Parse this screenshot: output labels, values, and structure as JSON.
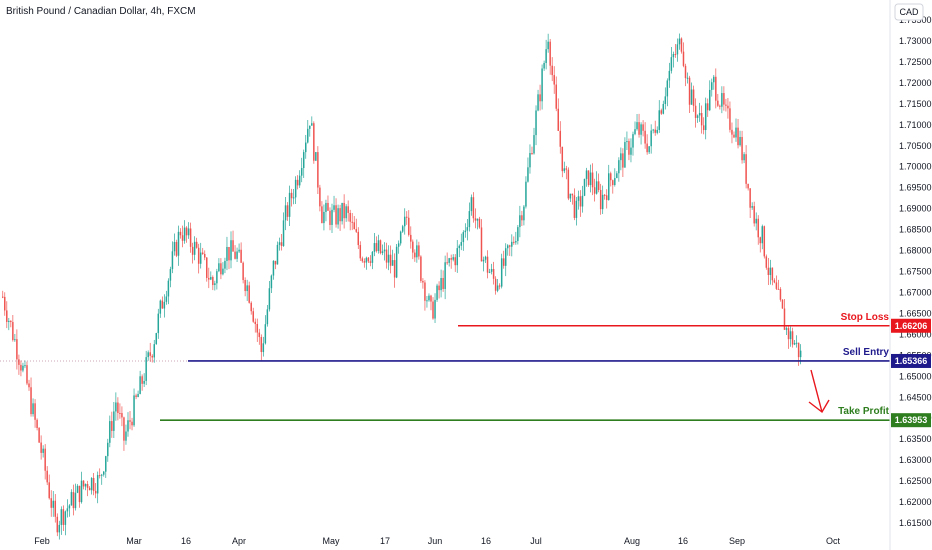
{
  "chart_data": {
    "type": "candlestick",
    "title": "British Pound / Canadian Dollar, 4h, FXCM",
    "currency": "CAD",
    "ylim": [
      1.611,
      1.736
    ],
    "y_ticks": [
      1.615,
      1.62,
      1.625,
      1.63,
      1.635,
      1.64,
      1.645,
      1.65,
      1.655,
      1.66,
      1.665,
      1.67,
      1.675,
      1.68,
      1.685,
      1.69,
      1.695,
      1.7,
      1.705,
      1.71,
      1.715,
      1.72,
      1.725,
      1.73,
      1.735
    ],
    "y_tick_labels": [
      "1.61500",
      "1.62000",
      "1.62500",
      "1.63000",
      "1.63500",
      "1.64000",
      "1.64500",
      "1.65000",
      "1.65500",
      "1.66000",
      "1.66500",
      "1.67000",
      "1.67500",
      "1.68000",
      "1.68500",
      "1.69000",
      "1.69500",
      "1.70000",
      "1.70500",
      "1.71000",
      "1.71500",
      "1.72000",
      "1.72500",
      "1.73000",
      "1.73500"
    ],
    "x_ticks": [
      "Feb",
      "Mar",
      "16",
      "Apr",
      "May",
      "17",
      "Jun",
      "16",
      "Jul",
      "Aug",
      "16",
      "Sep",
      "Oct"
    ],
    "up_color": "#26a69a",
    "down_color": "#ef5350",
    "anchors": [
      [
        0,
        1.669
      ],
      [
        4,
        1.662
      ],
      [
        12,
        1.648
      ],
      [
        20,
        1.63
      ],
      [
        26,
        1.615
      ],
      [
        34,
        1.62
      ],
      [
        42,
        1.625
      ],
      [
        48,
        1.625
      ],
      [
        56,
        1.644
      ],
      [
        60,
        1.635
      ],
      [
        66,
        1.644
      ],
      [
        74,
        1.657
      ],
      [
        80,
        1.67
      ],
      [
        88,
        1.685
      ],
      [
        96,
        1.68
      ],
      [
        104,
        1.672
      ],
      [
        110,
        1.68
      ],
      [
        116,
        1.679
      ],
      [
        122,
        1.67
      ],
      [
        128,
        1.656
      ],
      [
        134,
        1.676
      ],
      [
        140,
        1.688
      ],
      [
        146,
        1.698
      ],
      [
        152,
        1.712
      ],
      [
        158,
        1.689
      ],
      [
        164,
        1.688
      ],
      [
        170,
        1.689
      ],
      [
        178,
        1.679
      ],
      [
        186,
        1.68
      ],
      [
        194,
        1.676
      ],
      [
        200,
        1.688
      ],
      [
        206,
        1.677
      ],
      [
        212,
        1.665
      ],
      [
        220,
        1.676
      ],
      [
        226,
        1.68
      ],
      [
        232,
        1.692
      ],
      [
        238,
        1.678
      ],
      [
        244,
        1.672
      ],
      [
        252,
        1.681
      ],
      [
        258,
        1.692
      ],
      [
        262,
        1.706
      ],
      [
        266,
        1.718
      ],
      [
        270,
        1.732
      ],
      [
        274,
        1.712
      ],
      [
        278,
        1.698
      ],
      [
        284,
        1.689
      ],
      [
        290,
        1.698
      ],
      [
        296,
        1.692
      ],
      [
        302,
        1.698
      ],
      [
        308,
        1.703
      ],
      [
        314,
        1.709
      ],
      [
        320,
        1.705
      ],
      [
        326,
        1.715
      ],
      [
        332,
        1.726
      ],
      [
        336,
        1.73
      ],
      [
        340,
        1.717
      ],
      [
        346,
        1.71
      ],
      [
        352,
        1.72
      ],
      [
        358,
        1.712
      ],
      [
        364,
        1.708
      ],
      [
        368,
        1.698
      ],
      [
        372,
        1.688
      ],
      [
        376,
        1.683
      ],
      [
        380,
        1.673
      ],
      [
        384,
        1.668
      ],
      [
        388,
        1.661
      ],
      [
        392,
        1.658
      ],
      [
        395,
        1.655
      ]
    ],
    "levels": [
      {
        "name": "Stop Loss",
        "value": 1.66206,
        "tag": "1.66206",
        "color": "#e8171e"
      },
      {
        "name": "Sell Entry",
        "value": 1.65366,
        "tag": "1.65366",
        "color": "#1f1a8c"
      },
      {
        "name": "Take Profit",
        "value": 1.63953,
        "tag": "1.63953",
        "color": "#2e7d1e"
      }
    ],
    "arrow_color": "#e8171e"
  }
}
